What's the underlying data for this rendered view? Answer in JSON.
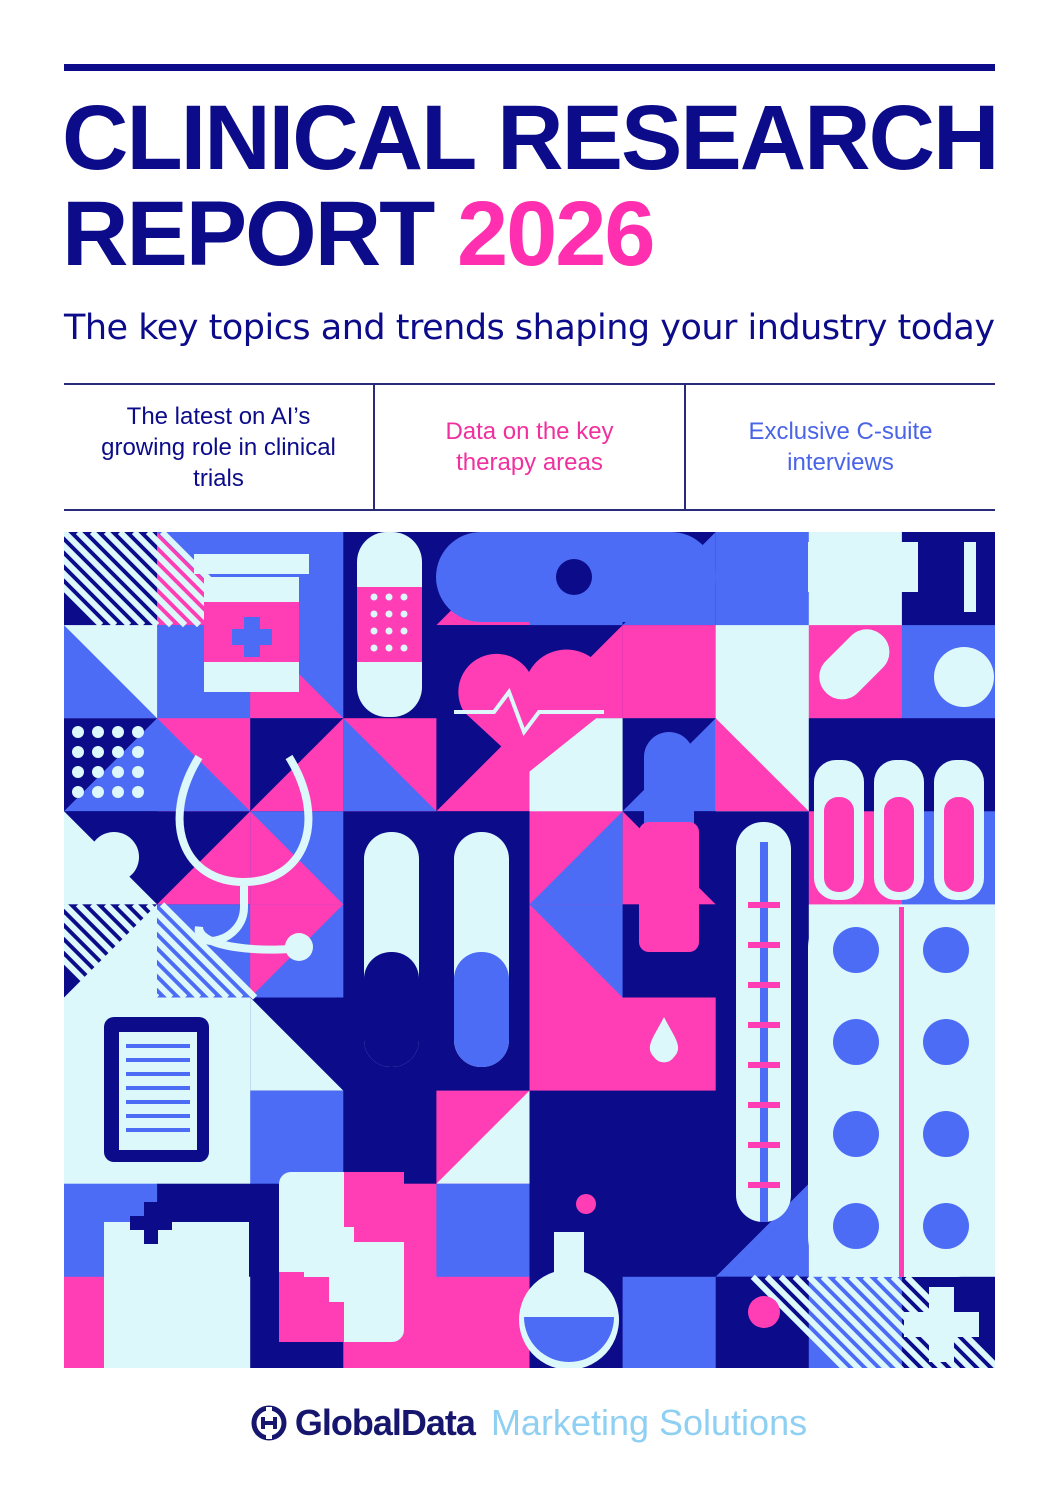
{
  "cover": {
    "title_line1": "CLINICAL RESEARCH",
    "title_line2": "REPORT",
    "year": "2026",
    "subtitle": "The key topics and trends shaping your industry today",
    "features": [
      {
        "text": "The latest on AI’s growing role in clinical trials",
        "color": "#0c0c8a"
      },
      {
        "text": "Data on the key therapy areas",
        "color": "#f0309e"
      },
      {
        "text": "Exclusive C-suite interviews",
        "color": "#4a64e8"
      }
    ]
  },
  "colors": {
    "navy": "#0c0c8a",
    "pink": "#ff3db4",
    "blue": "#4d6cf5",
    "light": "#dcf8fb"
  },
  "illustration": {
    "icons": [
      "pill-bottle-icon",
      "bandage-icon",
      "capsule-icon",
      "heart-icon",
      "syringe-icon",
      "stethoscope-icon",
      "test-tube-icon",
      "dropper-icon",
      "thermometer-icon",
      "blister-pack-icon",
      "clipboard-icon",
      "hospital-icon",
      "flask-icon",
      "medical-cross-icon",
      "blood-drop-icon"
    ]
  },
  "footer": {
    "logo_text": "GlobalData",
    "tagline": "Marketing Solutions"
  }
}
